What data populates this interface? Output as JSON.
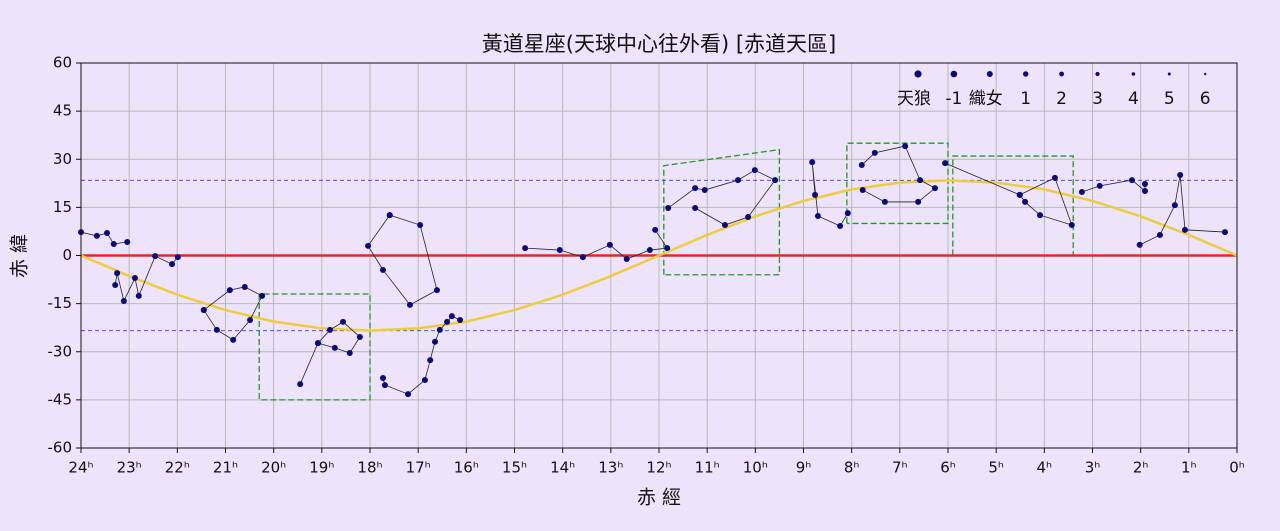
{
  "chart_data": {
    "type": "scatter",
    "title": "黃道星座(天球中心往外看) [赤道天區]",
    "xlabel": "赤 經",
    "ylabel": "赤 緯",
    "xlim": [
      24,
      0
    ],
    "ylim": [
      -60,
      60
    ],
    "xticks": [
      {
        "value": 24,
        "label": "24ʰ"
      },
      {
        "value": 23,
        "label": "23ʰ"
      },
      {
        "value": 22,
        "label": "22ʰ"
      },
      {
        "value": 21,
        "label": "21ʰ"
      },
      {
        "value": 20,
        "label": "20ʰ"
      },
      {
        "value": 19,
        "label": "19ʰ"
      },
      {
        "value": 18,
        "label": "18ʰ"
      },
      {
        "value": 17,
        "label": "17ʰ"
      },
      {
        "value": 16,
        "label": "16ʰ"
      },
      {
        "value": 15,
        "label": "15ʰ"
      },
      {
        "value": 14,
        "label": "14ʰ"
      },
      {
        "value": 13,
        "label": "13ʰ"
      },
      {
        "value": 12,
        "label": "12ʰ"
      },
      {
        "value": 11,
        "label": "11ʰ"
      },
      {
        "value": 10,
        "label": "10ʰ"
      },
      {
        "value": 9,
        "label": "9ʰ"
      },
      {
        "value": 8,
        "label": "8ʰ"
      },
      {
        "value": 7,
        "label": "7ʰ"
      },
      {
        "value": 6,
        "label": "6ʰ"
      },
      {
        "value": 5,
        "label": "5ʰ"
      },
      {
        "value": 4,
        "label": "4ʰ"
      },
      {
        "value": 3,
        "label": "3ʰ"
      },
      {
        "value": 2,
        "label": "2ʰ"
      },
      {
        "value": 1,
        "label": "1ʰ"
      },
      {
        "value": 0,
        "label": "0ʰ"
      }
    ],
    "yticks": [
      60,
      45,
      30,
      15,
      0,
      -15,
      -30,
      -45,
      -60
    ],
    "grid": true,
    "legend": {
      "position": "upper right",
      "labels": [
        "天狼",
        "-1",
        "織女",
        "1",
        "2",
        "3",
        "4",
        "5",
        "6"
      ]
    },
    "star_color": "#0a0a7a",
    "line_color": "#222222",
    "boundary_color": "#1f9a1f",
    "hlines": [
      {
        "value": 0,
        "color": "#e8262a",
        "dashed": false
      },
      {
        "value": 23.44,
        "color": "#3a3ae0",
        "dashed": true
      },
      {
        "value": -23.44,
        "color": "#3a3ae0",
        "dashed": true
      }
    ],
    "ecliptic": {
      "color": "#f0cc3c",
      "x": [
        0,
        1,
        2,
        3,
        4,
        5,
        6,
        7,
        8,
        9,
        10,
        11,
        12,
        13,
        14,
        15,
        16,
        17,
        18,
        19,
        20,
        21,
        22,
        23,
        24
      ],
      "y": [
        0,
        6.4,
        12.2,
        17.0,
        20.6,
        22.7,
        23.4,
        22.7,
        20.6,
        17.0,
        12.2,
        6.4,
        0,
        -6.4,
        -12.2,
        -17.0,
        -20.6,
        -22.7,
        -23.4,
        -22.7,
        -20.6,
        -17.0,
        -12.2,
        -6.4,
        0
      ]
    },
    "boundaries": [
      {
        "x": [
          20.3,
          20.3,
          18.0,
          18.0,
          20.3
        ],
        "y": [
          -12,
          -45,
          -45,
          -12,
          -12
        ]
      },
      {
        "x": [
          11.9,
          11.9,
          9.5,
          9.5,
          11.9
        ],
        "y": [
          -6,
          28,
          33,
          -6,
          -6
        ]
      },
      {
        "x": [
          8.1,
          8.1,
          6.0,
          6.0,
          8.1
        ],
        "y": [
          10,
          35,
          35,
          10,
          10
        ]
      },
      {
        "x": [
          5.9,
          5.9,
          3.4,
          3.4,
          5.9
        ],
        "y": [
          0,
          31,
          31,
          0,
          0
        ]
      }
    ],
    "figures": [
      {
        "x": [
          24.0,
          23.67,
          23.46,
          23.32,
          23.04
        ],
        "y": [
          7.3,
          6.1,
          7.0,
          3.6,
          4.2
        ]
      },
      {
        "x": [
          23.29,
          23.25,
          23.11,
          22.88,
          22.8,
          22.46,
          22.11,
          21.99
        ],
        "y": [
          -9.2,
          -5.5,
          -14.2,
          -7.0,
          -12.6,
          -0.2,
          -2.7,
          -0.5
        ]
      },
      {
        "x": [
          21.45,
          21.18,
          20.84,
          20.49,
          20.24,
          20.6,
          20.91,
          21.45
        ],
        "y": [
          -17.0,
          -23.2,
          -26.3,
          -20.1,
          -12.6,
          -9.8,
          -10.8,
          -17.0
        ]
      },
      {
        "x": [
          19.45,
          19.08,
          18.83,
          18.56,
          18.21,
          18.42,
          18.73,
          19.08
        ],
        "y": [
          -40.1,
          -27.3,
          -23.2,
          -20.7,
          -25.4,
          -30.4,
          -28.8,
          -27.3
        ]
      },
      {
        "x": [
          16.13,
          16.3,
          16.4,
          16.55,
          16.65,
          16.75,
          16.86,
          17.21,
          17.69,
          17.73
        ],
        "y": [
          -20.1,
          -18.9,
          -20.7,
          -23.2,
          -26.9,
          -32.6,
          -38.8,
          -43.2,
          -40.4,
          -38.2
        ]
      },
      {
        "x": [
          17.59,
          16.96,
          16.61,
          17.17,
          17.73,
          18.04,
          17.59
        ],
        "y": [
          12.6,
          9.5,
          -10.8,
          -15.4,
          -4.5,
          3.0,
          12.6
        ]
      },
      {
        "x": [
          14.78,
          14.06,
          13.58,
          13.02,
          12.67,
          12.19,
          11.83,
          12.08
        ],
        "y": [
          2.3,
          1.7,
          -0.5,
          3.3,
          -1.1,
          1.7,
          2.3,
          8.0
        ]
      },
      {
        "x": [
          11.81,
          11.25,
          11.05,
          10.36,
          10.01,
          9.59,
          10.15,
          10.63,
          11.25
        ],
        "y": [
          14.8,
          21.0,
          20.4,
          23.5,
          26.6,
          23.5,
          12.0,
          9.5,
          14.8
        ]
      },
      {
        "x": [
          8.76,
          8.82,
          8.7,
          8.24,
          8.08
        ],
        "y": [
          18.9,
          29.1,
          12.3,
          9.2,
          13.2
        ]
      },
      {
        "x": [
          7.79,
          7.52,
          6.89,
          6.58,
          6.27,
          6.62,
          7.31,
          7.77
        ],
        "y": [
          28.2,
          32.0,
          34.1,
          23.5,
          21.0,
          16.7,
          16.7,
          20.4
        ]
      },
      {
        "x": [
          6.06,
          4.51,
          4.4,
          4.09,
          3.43,
          3.78,
          4.51
        ],
        "y": [
          28.8,
          18.9,
          16.7,
          12.6,
          9.5,
          24.2,
          18.9
        ]
      },
      {
        "x": [
          3.22,
          2.85,
          2.18,
          1.91,
          1.91
        ],
        "y": [
          19.8,
          21.7,
          23.5,
          20.1,
          22.3
        ]
      },
      {
        "x": [
          2.02,
          1.6,
          1.29,
          1.18,
          1.08,
          0.25
        ],
        "y": [
          3.3,
          6.4,
          15.7,
          25.1,
          8.0,
          7.3
        ]
      }
    ]
  }
}
